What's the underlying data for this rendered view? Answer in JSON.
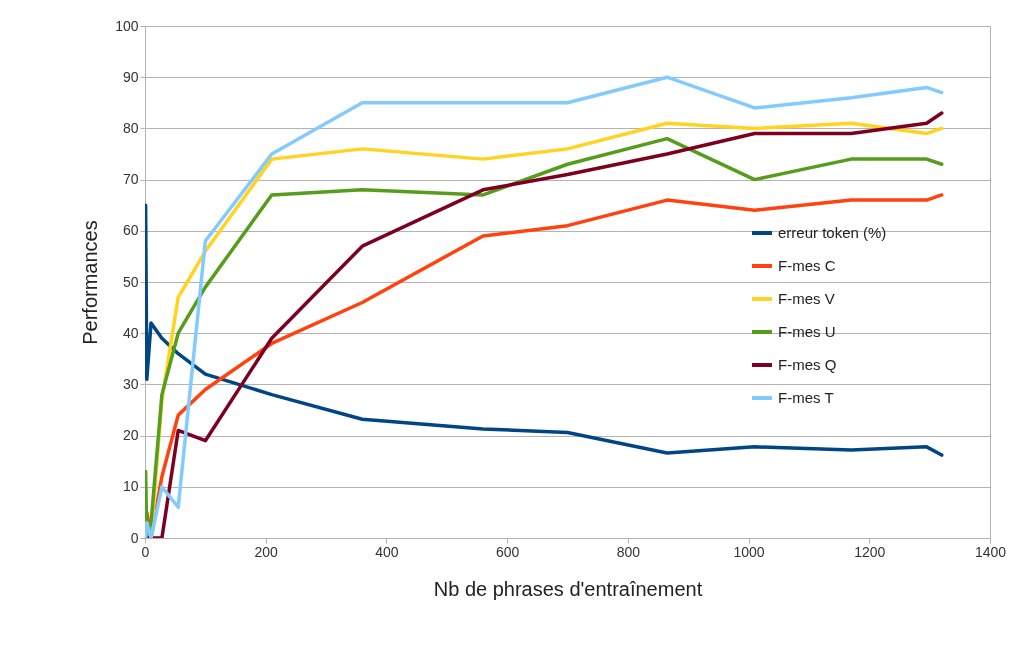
{
  "chart_data": {
    "type": "line",
    "xlabel": "Nb de phrases d'entraînement",
    "ylabel": "Performances",
    "x": [
      1,
      3,
      10,
      28,
      55,
      100,
      210,
      360,
      560,
      700,
      865,
      1010,
      1170,
      1295,
      1320
    ],
    "xlim": [
      0,
      1400
    ],
    "xticks": [
      0,
      200,
      400,
      600,
      800,
      1000,
      1200,
      1400
    ],
    "ylim": [
      0,
      100
    ],
    "yticks": [
      0,
      10,
      20,
      30,
      40,
      50,
      60,
      70,
      80,
      90,
      100
    ],
    "grid": "y",
    "legend": "right",
    "marker": "none",
    "line_style": "solid",
    "series": [
      {
        "name": "erreur token (%)",
        "color": "#004586",
        "values": [
          65,
          31,
          42,
          39,
          36,
          32,
          28,
          23.2,
          21.3,
          20.6,
          16.6,
          17.8,
          17.2,
          17.8,
          16.2
        ]
      },
      {
        "name": "F-mes C",
        "color": "#ff420e",
        "values": [
          null,
          5,
          0,
          12,
          24,
          29,
          38,
          46,
          59,
          61,
          66,
          64,
          66,
          66,
          67
        ]
      },
      {
        "name": "F-mes V",
        "color": "#ffd320",
        "values": [
          0,
          3,
          0,
          27,
          47,
          56,
          74,
          76,
          74,
          76,
          81,
          80,
          81,
          79,
          80
        ]
      },
      {
        "name": "F-mes U",
        "color": "#579d1c",
        "values": [
          13,
          0,
          3,
          28,
          40,
          49,
          67,
          68,
          67,
          73,
          78,
          70,
          74,
          74,
          73
        ]
      },
      {
        "name": "F-mes Q",
        "color": "#7e0021",
        "values": [
          0,
          0,
          0,
          0,
          21,
          19,
          39,
          57,
          68,
          71,
          75,
          79,
          79,
          81,
          83
        ]
      },
      {
        "name": "F-mes T",
        "color": "#83caff",
        "values": [
          0,
          3,
          0,
          10,
          6,
          58,
          75,
          85,
          85,
          85,
          90,
          84,
          86,
          88,
          87
        ]
      }
    ]
  }
}
